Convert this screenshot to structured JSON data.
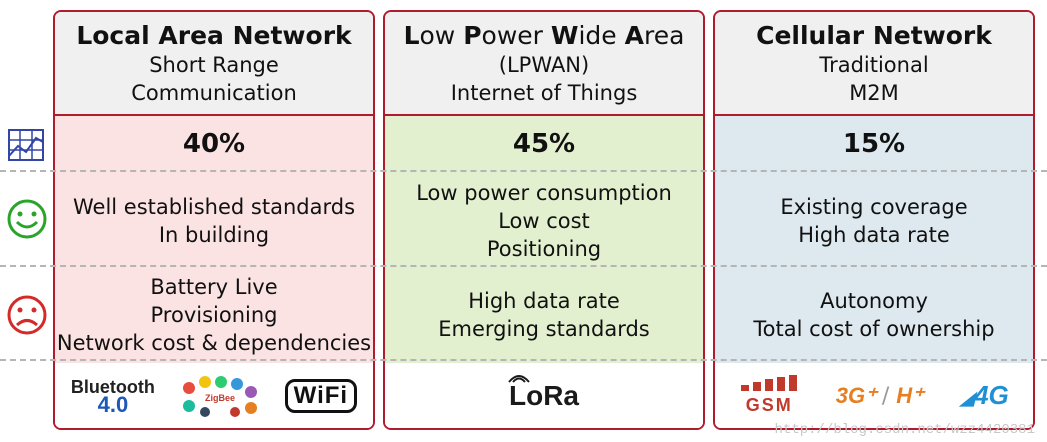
{
  "columns": [
    {
      "title_parts": [
        {
          "cap": "Local Area Network",
          "rest": ""
        }
      ],
      "subtitle": [
        "Short Range",
        "Communication"
      ],
      "percent": "40%",
      "pros": [
        "Well established standards",
        "In building"
      ],
      "cons": [
        "Battery Live",
        "Provisioning",
        "Network cost & dependencies"
      ],
      "logos": {
        "bluetooth": "Bluetooth",
        "bluetooth_ver": "4.0",
        "zigbee": "ZigBee",
        "wifi": "WiFi"
      },
      "bg": "#fbe3e3"
    },
    {
      "title_parts": [
        {
          "cap": "L",
          "rest": "ow "
        },
        {
          "cap": "P",
          "rest": "ower "
        },
        {
          "cap": "W",
          "rest": "ide "
        },
        {
          "cap": "A",
          "rest": "rea"
        }
      ],
      "subtitle": [
        "(LPWAN)",
        "Internet of Things"
      ],
      "percent": "45%",
      "pros": [
        "Low power consumption",
        "Low cost",
        "Positioning"
      ],
      "cons": [
        "High data rate",
        "Emerging standards"
      ],
      "logos": {
        "lora": "LoRa"
      },
      "bg": "#e3f0cf"
    },
    {
      "title_parts": [
        {
          "cap": "Cellular Network",
          "rest": ""
        }
      ],
      "subtitle": [
        "Traditional",
        "M2M"
      ],
      "percent": "15%",
      "pros": [
        "Existing coverage",
        "High data rate"
      ],
      "cons": [
        "Autonomy",
        "Total cost of ownership"
      ],
      "logos": {
        "gsm": "GSM",
        "g3": "3G⁺",
        "hplus": "H⁺",
        "g4": "4G"
      },
      "bg": "#dde9ef"
    }
  ],
  "colors": {
    "border": "#b01c2e",
    "happy": "#2aa52a",
    "sad": "#d42a2a",
    "chart_icon": "#3346a6"
  },
  "icons": [
    "chart-icon",
    "happy-face-icon",
    "sad-face-icon"
  ],
  "watermark": "http://blog.csdn.net/wzz4420381"
}
